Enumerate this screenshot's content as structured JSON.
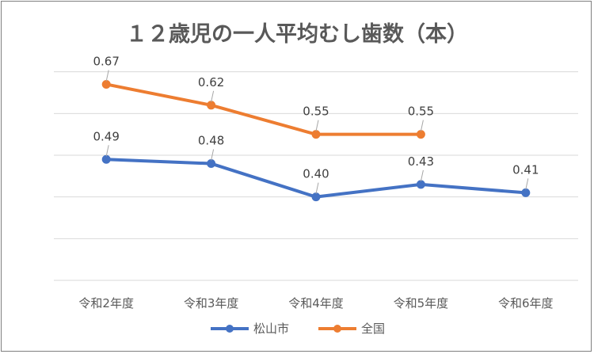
{
  "chart_data": {
    "type": "line",
    "title": "１２歳児の一人平均むし歯数（本）",
    "categories": [
      "令和2年度",
      "令和3年度",
      "令和4年度",
      "令和5年度",
      "令和6年度"
    ],
    "ylim": [
      0.2,
      0.8
    ],
    "grid": true,
    "legend_position": "bottom",
    "series": [
      {
        "name": "松山市",
        "color": "#4472C4",
        "values": [
          0.49,
          0.48,
          0.4,
          0.43,
          0.41
        ],
        "labels": [
          "0.49",
          "0.48",
          "0.40",
          "0.43",
          "0.41"
        ]
      },
      {
        "name": "全国",
        "color": "#ED7D31",
        "values": [
          0.67,
          0.62,
          0.55,
          0.55,
          null
        ],
        "labels": [
          "0.67",
          "0.62",
          "0.55",
          "0.55",
          null
        ]
      }
    ]
  }
}
